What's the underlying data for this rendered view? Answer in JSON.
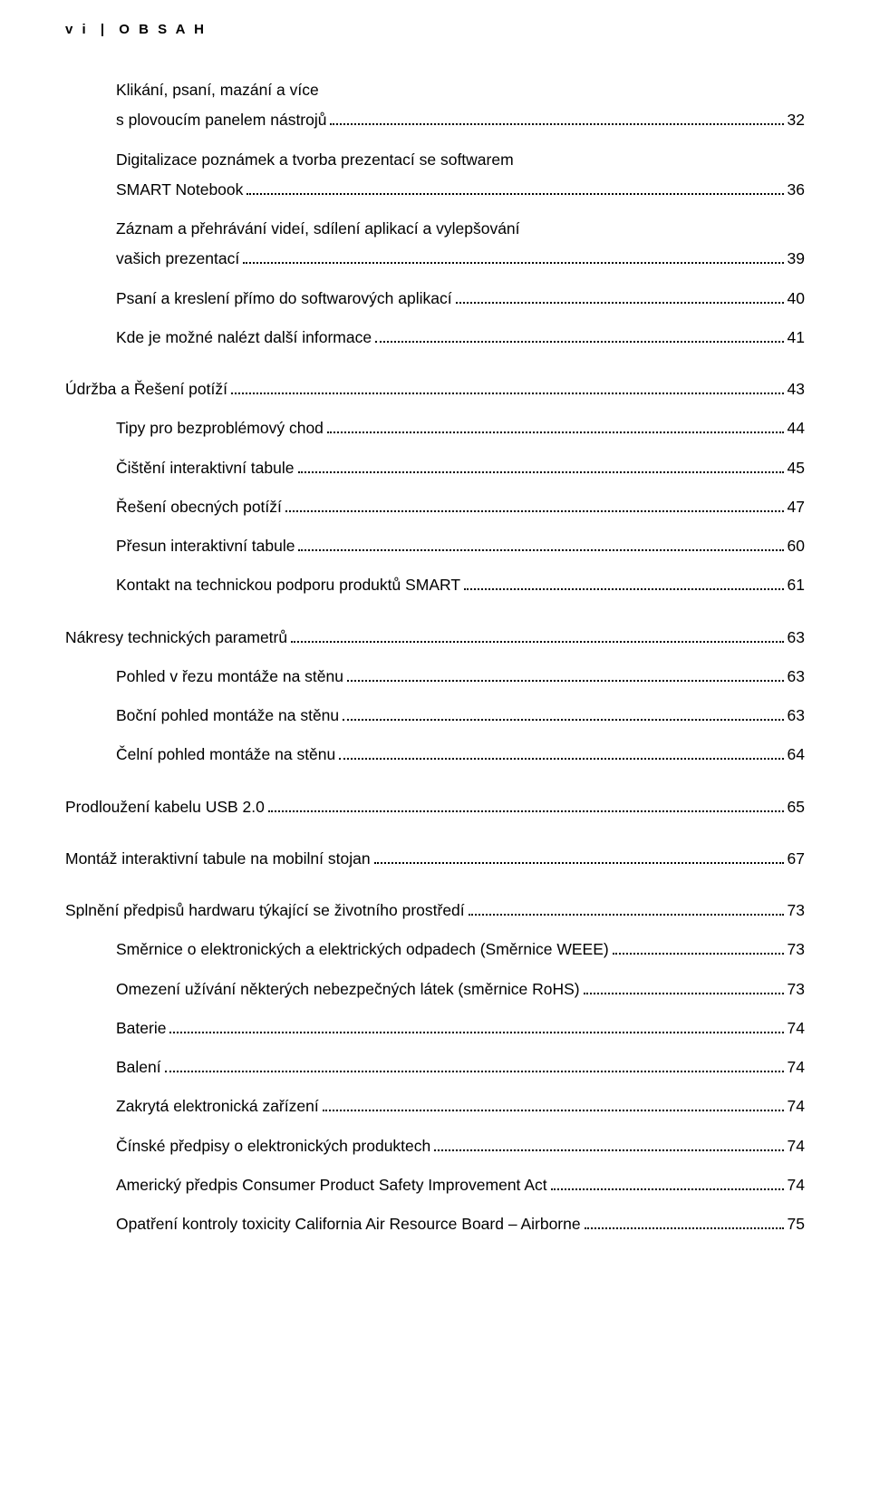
{
  "header": {
    "roman": "v i",
    "separator": "|",
    "title": "O B S A H"
  },
  "toc": [
    {
      "label": "Klikání, psaní, mazání a více",
      "page": "",
      "level": 1,
      "nopage": true,
      "tight": true
    },
    {
      "label": "s plovoucím panelem nástrojů",
      "page": "32",
      "level": 1,
      "tight": true
    },
    {
      "label": "Digitalizace poznámek a tvorba prezentací se softwarem",
      "page": "",
      "level": 1,
      "nopage": true
    },
    {
      "label": "SMART Notebook",
      "page": "36",
      "level": 1,
      "tight": true
    },
    {
      "label": "Záznam a přehrávání videí, sdílení aplikací a vylepšování",
      "page": "",
      "level": 1,
      "nopage": true
    },
    {
      "label": "vašich prezentací",
      "page": "39",
      "level": 1,
      "tight": true
    },
    {
      "label": "Psaní a kreslení přímo do softwarových aplikací",
      "page": "40",
      "level": 1
    },
    {
      "label": "Kde je možné nalézt další informace",
      "page": "41",
      "level": 1
    },
    {
      "label": "Údržba a Řešení potíží",
      "page": "43",
      "level": 0
    },
    {
      "label": "Tipy pro bezproblémový chod",
      "page": "44",
      "level": 1
    },
    {
      "label": "Čištění interaktivní tabule",
      "page": "45",
      "level": 1
    },
    {
      "label": "Řešení obecných potíží",
      "page": "47",
      "level": 1
    },
    {
      "label": "Přesun interaktivní tabule",
      "page": "60",
      "level": 1
    },
    {
      "label": "Kontakt na technickou podporu produktů SMART",
      "page": "61",
      "level": 1
    },
    {
      "label": "Nákresy technických parametrů",
      "page": "63",
      "level": 0
    },
    {
      "label": "Pohled v řezu montáže na stěnu",
      "page": "63",
      "level": 1
    },
    {
      "label": "Boční pohled montáže na stěnu",
      "page": "63",
      "level": 1
    },
    {
      "label": "Čelní pohled montáže na stěnu",
      "page": "64",
      "level": 1
    },
    {
      "label": "Prodloužení kabelu USB 2.0",
      "page": "65",
      "level": 0
    },
    {
      "label": "Montáž interaktivní tabule na mobilní stojan",
      "page": "67",
      "level": 0
    },
    {
      "label": "Splnění předpisů hardwaru týkající se životního prostředí",
      "page": "73",
      "level": 0
    },
    {
      "label": "Směrnice o elektronických a elektrických odpadech  (Směrnice WEEE)",
      "page": "73",
      "level": 1
    },
    {
      "label": "Omezení užívání některých nebezpečných látek (směrnice RoHS)",
      "page": "73",
      "level": 1
    },
    {
      "label": "Baterie",
      "page": "74",
      "level": 1
    },
    {
      "label": "Balení",
      "page": "74",
      "level": 1
    },
    {
      "label": "Zakrytá elektronická zařízení",
      "page": "74",
      "level": 1
    },
    {
      "label": "Čínské předpisy o elektronických produktech",
      "page": "74",
      "level": 1
    },
    {
      "label": "Americký předpis Consumer Product Safety Improvement Act",
      "page": "74",
      "level": 1
    },
    {
      "label": "Opatření kontroly toxicity California Air Resource Board – Airborne",
      "page": "75",
      "level": 1
    }
  ]
}
